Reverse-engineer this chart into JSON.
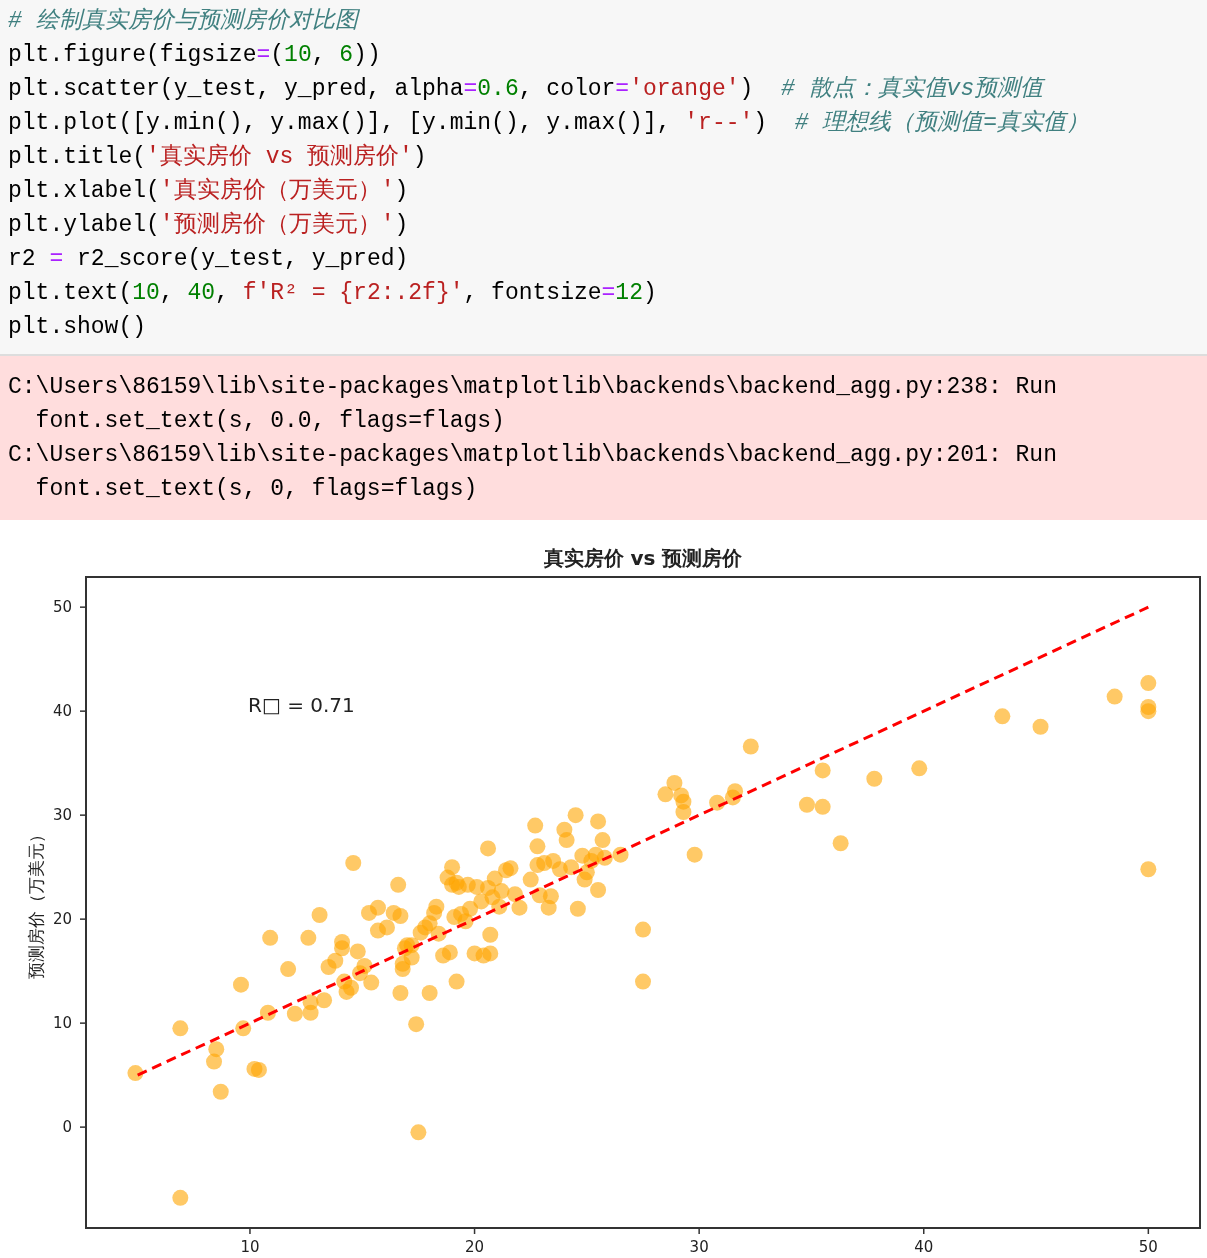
{
  "chart_data": {
    "type": "scatter",
    "title": "真实房价 vs 预测房价",
    "ylabel": "预测房价（万美元）",
    "xlim": [
      2.7,
      52.3
    ],
    "ylim": [
      -9.7,
      52.9
    ],
    "xticks": [
      10,
      20,
      30,
      40,
      50
    ],
    "yticks": [
      0,
      10,
      20,
      30,
      40,
      50
    ],
    "series": [
      {
        "type": "scatter",
        "color": "#ffa500",
        "marker": "circle",
        "x": [
          4.9,
          6.9,
          6.9,
          8.5,
          8.4,
          8.7,
          9.6,
          9.7,
          10.2,
          10.4,
          10.8,
          10.9,
          11.7,
          12.0,
          12.6,
          12.7,
          12.7,
          13.1,
          13.3,
          13.5,
          13.8,
          14.1,
          14.1,
          14.2,
          14.3,
          14.5,
          14.6,
          14.8,
          14.9,
          15.1,
          15.3,
          15.4,
          15.7,
          15.7,
          16.1,
          16.4,
          16.6,
          16.7,
          16.7,
          16.8,
          16.8,
          16.9,
          17.0,
          17.2,
          17.2,
          17.4,
          17.5,
          17.6,
          17.8,
          18.0,
          18.0,
          18.2,
          18.3,
          18.4,
          18.6,
          18.8,
          18.9,
          19.0,
          19.0,
          19.1,
          19.2,
          19.2,
          19.3,
          19.4,
          19.6,
          19.7,
          19.8,
          20.0,
          20.1,
          20.3,
          20.4,
          20.6,
          20.6,
          20.7,
          20.7,
          20.8,
          20.9,
          21.1,
          21.2,
          21.4,
          21.6,
          21.8,
          22.0,
          22.5,
          22.7,
          22.8,
          22.8,
          22.9,
          23.1,
          23.3,
          23.4,
          23.5,
          23.8,
          24.0,
          24.1,
          24.3,
          24.5,
          24.6,
          24.8,
          24.9,
          25.0,
          25.2,
          25.4,
          25.5,
          25.5,
          25.7,
          25.8,
          26.5,
          27.5,
          27.5,
          28.5,
          28.9,
          29.2,
          29.3,
          29.3,
          29.8,
          30.8,
          31.5,
          31.6,
          32.3,
          34.8,
          35.5,
          35.5,
          36.3,
          37.8,
          39.8,
          43.5,
          45.2,
          48.5,
          50.0,
          50.0,
          50.0,
          50.0
        ],
        "values": [
          5.2,
          9.5,
          -6.8,
          7.5,
          6.3,
          3.4,
          13.7,
          9.5,
          5.6,
          5.5,
          11.0,
          18.2,
          15.2,
          10.9,
          18.2,
          11.0,
          12.0,
          20.4,
          12.2,
          15.4,
          16.0,
          17.8,
          17.2,
          14.0,
          13.0,
          13.4,
          25.4,
          16.9,
          14.8,
          15.5,
          20.6,
          13.9,
          21.1,
          18.9,
          19.2,
          20.6,
          23.3,
          20.3,
          12.9,
          15.7,
          15.2,
          17.2,
          17.5,
          17.5,
          16.3,
          9.9,
          -0.5,
          18.7,
          19.2,
          12.9,
          19.6,
          20.6,
          21.2,
          18.6,
          16.5,
          24.0,
          16.8,
          23.3,
          25.0,
          20.2,
          14.0,
          23.5,
          23.1,
          20.5,
          19.8,
          23.3,
          21.0,
          16.7,
          23.1,
          21.7,
          16.5,
          26.8,
          23.0,
          18.5,
          16.7,
          22.1,
          23.9,
          21.2,
          22.7,
          24.7,
          24.9,
          22.4,
          21.1,
          23.8,
          29.0,
          27.0,
          25.2,
          22.3,
          25.4,
          21.1,
          22.2,
          25.6,
          24.8,
          28.6,
          27.6,
          25.0,
          30.0,
          21.0,
          26.1,
          23.8,
          24.5,
          25.6,
          26.2,
          29.4,
          22.8,
          27.6,
          25.9,
          26.2,
          19.0,
          14.0,
          32.0,
          33.1,
          31.9,
          31.3,
          30.3,
          26.2,
          31.2,
          31.7,
          32.3,
          36.6,
          31.0,
          30.8,
          34.3,
          27.3,
          33.5,
          34.5,
          39.5,
          38.5,
          41.4,
          42.7,
          40.4,
          40.0,
          24.8
        ]
      },
      {
        "type": "line",
        "color": "#ff0000",
        "line_style": "dashed",
        "x": [
          5,
          50
        ],
        "values": [
          5,
          50
        ]
      }
    ],
    "annotations": [
      "# 绘制真实房价与预测房价对比图\nplt.figure(figsize=(10, 6))\nplt.scatter(y_test, y_pred, alpha=0.6, color='orange')  # 散点：真实值vs预测值\nplt.plot([y.min(), y.max()], [y.min(), y.max()], 'r--')  # 理想线（预测值=真实值）\nplt.title('真实房价 vs 预测房价')\nplt.xlabel('真实房价（万美元）')\nplt.ylabel('预测房价（万美元）')\nr2 = r2_score(y_test, y_pred)\nplt.text(10, 40, f'R² = {r2:.2f}', fontsize=12)\nplt.show()",
      "C:\\Users\\86159\\lib\\site-packages\\matplotlib\\backends\\backend_agg.py:238: Run\n  font.set_text(s, 0.0, flags=flags)\nC:\\Users\\86159\\lib\\site-packages\\matplotlib\\backends\\backend_agg.py:201: Run\n  font.set_text(s, 0, flags=flags)",
      "R□ = 0.71"
    ]
  }
}
